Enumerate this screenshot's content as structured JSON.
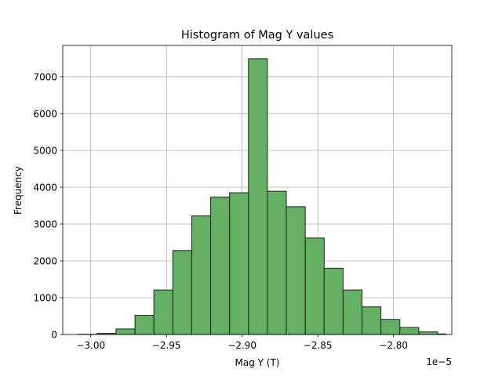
{
  "chart_data": {
    "type": "bar",
    "title": "Histogram of Mag Y values",
    "xlabel": "Mag Y (T)",
    "ylabel": "Frequency",
    "x_offset_text": "1e−5",
    "xlim": [
      -3.0185,
      -2.7615
    ],
    "ylim": [
      0,
      7850
    ],
    "grid": true,
    "bar_color": "#63af63",
    "edge_color": "#1a2a1a",
    "bin_edges": [
      -3.0083,
      -2.9958,
      -2.9833,
      -2.9708,
      -2.9583,
      -2.9458,
      -2.9333,
      -2.9208,
      -2.9083,
      -2.8958,
      -2.8833,
      -2.8708,
      -2.8583,
      -2.8458,
      -2.8333,
      -2.8208,
      -2.8083,
      -2.7958,
      -2.7833,
      -2.7708,
      -2.7655
    ],
    "values": [
      5,
      30,
      150,
      520,
      1210,
      2280,
      3220,
      3730,
      3850,
      7490,
      3890,
      3470,
      2620,
      1800,
      1210,
      750,
      410,
      190,
      70,
      15
    ],
    "x_ticks": [
      {
        "value": -3.0,
        "label": "−3.00"
      },
      {
        "value": -2.95,
        "label": "−2.95"
      },
      {
        "value": -2.9,
        "label": "−2.90"
      },
      {
        "value": -2.85,
        "label": "−2.85"
      },
      {
        "value": -2.8,
        "label": "−2.80"
      }
    ],
    "y_ticks": [
      {
        "value": 0,
        "label": "0"
      },
      {
        "value": 1000,
        "label": "1000"
      },
      {
        "value": 2000,
        "label": "2000"
      },
      {
        "value": 3000,
        "label": "3000"
      },
      {
        "value": 4000,
        "label": "4000"
      },
      {
        "value": 5000,
        "label": "5000"
      },
      {
        "value": 6000,
        "label": "6000"
      },
      {
        "value": 7000,
        "label": "7000"
      }
    ]
  }
}
